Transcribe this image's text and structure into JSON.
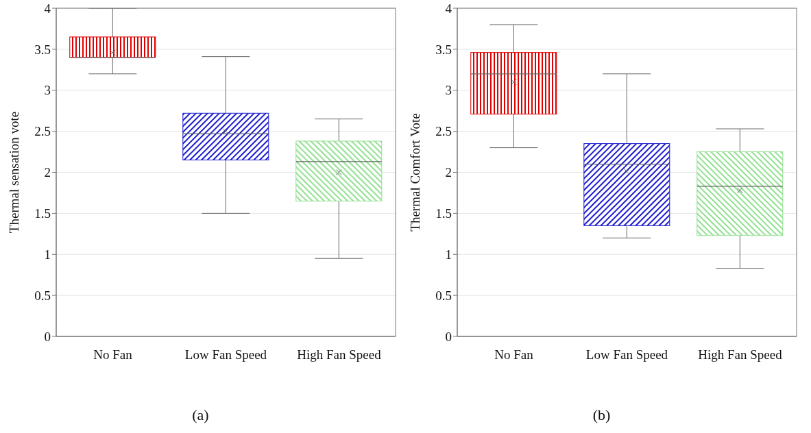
{
  "chart_data": [
    {
      "type": "box",
      "ylabel": "Thermal sensation vote",
      "categories": [
        "No Fan",
        "Low Fan Speed",
        "High Fan Speed"
      ],
      "boxes": [
        {
          "low": 3.2,
          "q1": 3.4,
          "median": 3.4,
          "q3": 3.65,
          "high": 4.0,
          "mean": 3.46
        },
        {
          "low": 1.5,
          "q1": 2.15,
          "median": 2.47,
          "q3": 2.72,
          "high": 3.41,
          "mean": 2.5
        },
        {
          "low": 0.95,
          "q1": 1.65,
          "median": 2.13,
          "q3": 2.38,
          "high": 2.65,
          "mean": 2.0
        }
      ],
      "colors": [
        "#e00000",
        "#1a1ad0",
        "#8fe08f"
      ],
      "ylim": [
        0,
        4
      ],
      "yticks": [
        0,
        0.5,
        1,
        1.5,
        2,
        2.5,
        3,
        3.5,
        4
      ],
      "grid": "y",
      "annotations": [
        "(a)"
      ]
    },
    {
      "type": "box",
      "ylabel": "Thermal Comfort Vote",
      "categories": [
        "No Fan",
        "Low Fan Speed",
        "High Fan Speed"
      ],
      "boxes": [
        {
          "low": 2.3,
          "q1": 2.71,
          "median": 3.2,
          "q3": 3.46,
          "high": 3.8,
          "mean": 3.1
        },
        {
          "low": 1.2,
          "q1": 1.35,
          "median": 2.1,
          "q3": 2.35,
          "high": 3.2,
          "mean": 2.01
        },
        {
          "low": 0.83,
          "q1": 1.23,
          "median": 1.83,
          "q3": 2.25,
          "high": 2.53,
          "mean": 1.78
        }
      ],
      "colors": [
        "#e00000",
        "#1a1ad0",
        "#8fe08f"
      ],
      "ylim": [
        0,
        4
      ],
      "yticks": [
        0,
        0.5,
        1,
        1.5,
        2,
        2.5,
        3,
        3.5,
        4
      ],
      "grid": "y",
      "annotations": [
        "(b)"
      ]
    }
  ]
}
